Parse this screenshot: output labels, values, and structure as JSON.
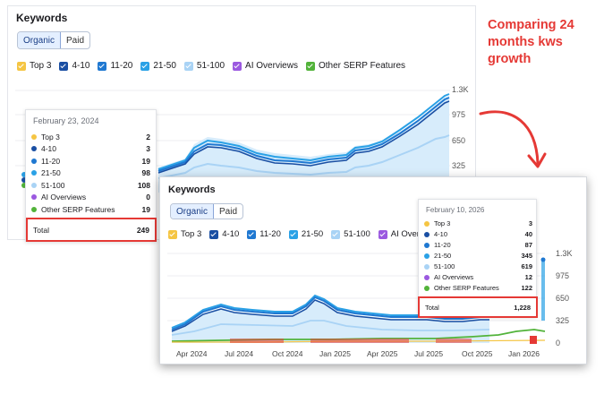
{
  "note_text": "Comparing 24 months kws growth",
  "colors": {
    "top3": "#f5c543",
    "r4_10": "#1a4fa3",
    "r11_20": "#1f78d1",
    "r21_50": "#2aa1e6",
    "r51_100": "#a9d3f5",
    "ai": "#9b59e0",
    "serp": "#52b33a",
    "accent_red": "#e53935"
  },
  "card1": {
    "title": "Keywords",
    "toggle": {
      "organic": "Organic",
      "paid": "Paid"
    },
    "legend": [
      "Top 3",
      "4-10",
      "11-20",
      "21-50",
      "51-100",
      "AI Overviews",
      "Other SERP Features"
    ],
    "y_ticks": [
      "1.3K",
      "975",
      "650",
      "325"
    ],
    "tooltip": {
      "date": "February 23, 2024",
      "rows": [
        {
          "label": "Top 3",
          "value": "2"
        },
        {
          "label": "4-10",
          "value": "3"
        },
        {
          "label": "11-20",
          "value": "19"
        },
        {
          "label": "21-50",
          "value": "98"
        },
        {
          "label": "51-100",
          "value": "108"
        },
        {
          "label": "AI Overviews",
          "value": "0"
        },
        {
          "label": "Other SERP Features",
          "value": "19"
        }
      ],
      "total_label": "Total",
      "total_value": "249"
    }
  },
  "card2": {
    "title": "Keywords",
    "toggle": {
      "organic": "Organic",
      "paid": "Paid"
    },
    "legend": [
      "Top 3",
      "4-10",
      "11-20",
      "21-50",
      "51-100",
      "AI Overviews"
    ],
    "y_ticks": [
      "1.3K",
      "975",
      "650",
      "325",
      "0"
    ],
    "x_ticks": [
      "Apr 2024",
      "Jul 2024",
      "Oct 2024",
      "Jan 2025",
      "Apr 2025",
      "Jul 2025",
      "Oct 2025",
      "Jan 2026"
    ],
    "tooltip": {
      "date": "February 10, 2026",
      "rows": [
        {
          "label": "Top 3",
          "value": "3"
        },
        {
          "label": "4-10",
          "value": "40"
        },
        {
          "label": "11-20",
          "value": "87"
        },
        {
          "label": "21-50",
          "value": "345"
        },
        {
          "label": "51-100",
          "value": "619"
        },
        {
          "label": "AI Overviews",
          "value": "12"
        },
        {
          "label": "Other SERP Features",
          "value": "122"
        }
      ],
      "total_label": "Total",
      "total_value": "1,228"
    }
  }
}
